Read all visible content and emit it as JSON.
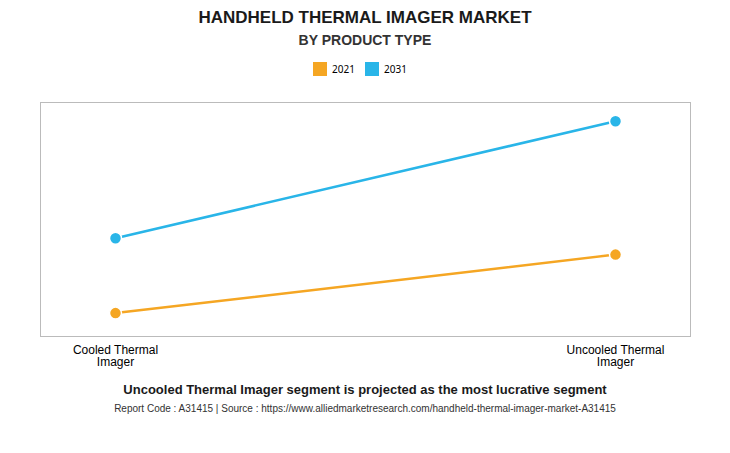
{
  "chart_data": {
    "type": "line",
    "title": "HANDHELD THERMAL IMAGER MARKET",
    "subtitle": "BY PRODUCT TYPE",
    "categories": [
      "Cooled Thermal\nImager",
      "Uncooled Thermal\nImager"
    ],
    "series": [
      {
        "name": "2021",
        "color": "#F5A623",
        "values": [
          1.0,
          3.5
        ]
      },
      {
        "name": "2031",
        "color": "#29B5E8",
        "values": [
          4.2,
          9.2
        ]
      }
    ],
    "ylim": [
      0,
      10
    ],
    "yticks": [],
    "grid": false,
    "tick_labels": "x",
    "legend": "top",
    "marker": "circle",
    "annotations": [
      "Uncooled Thermal Imager segment is projected as the most lucrative segment",
      "Report Code : A31415  |  Source : https://www.alliedmarketresearch.com/handheld-thermal-imager-market-A31415"
    ]
  }
}
